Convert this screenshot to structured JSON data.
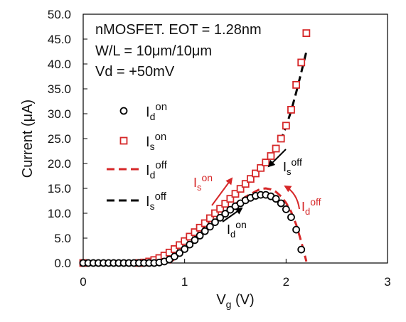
{
  "chart_data": {
    "type": "scatter",
    "xlabel": "V",
    "xlabel_sub": "g",
    "xlabel_unit": " (V)",
    "ylabel": "Current  (μA)",
    "xlim": [
      0,
      3
    ],
    "ylim": [
      0,
      50
    ],
    "xticks": [
      "0",
      "1",
      "2",
      "3"
    ],
    "yticks": [
      "0.0",
      "5.0",
      "10.0",
      "15.0",
      "20.0",
      "25.0",
      "30.0",
      "35.0",
      "40.0",
      "45.0",
      "50.0"
    ],
    "grid": false,
    "legend_position": "left",
    "annotations_text": [
      "nMOSFET. EOT = 1.28nm",
      "W/L = 10μm/10μm",
      "Vd = +50mV"
    ],
    "arrow_labels": [
      {
        "base": "I",
        "sub": "s",
        "sup": "on",
        "color": "#d62728"
      },
      {
        "base": "I",
        "sub": "s",
        "sup": "off",
        "color": "#000000"
      },
      {
        "base": "I",
        "sub": "d",
        "sup": "on",
        "color": "#000000"
      },
      {
        "base": "I",
        "sub": "d",
        "sup": "off",
        "color": "#d62728"
      }
    ],
    "series": [
      {
        "name": "Id_on",
        "legend_base": "I",
        "legend_sub": "d",
        "legend_sup": "on",
        "style": "circle",
        "color": "#000000",
        "x": [
          0.0,
          0.05,
          0.1,
          0.15,
          0.2,
          0.25,
          0.3,
          0.35,
          0.4,
          0.45,
          0.5,
          0.55,
          0.6,
          0.65,
          0.7,
          0.75,
          0.8,
          0.85,
          0.9,
          0.95,
          1.0,
          1.05,
          1.1,
          1.15,
          1.2,
          1.25,
          1.3,
          1.35,
          1.4,
          1.45,
          1.5,
          1.55,
          1.6,
          1.65,
          1.7,
          1.75,
          1.8,
          1.85,
          1.9,
          1.95,
          2.0,
          2.05,
          2.1,
          2.15
        ],
        "y": [
          0.0,
          0.0,
          0.0,
          0.0,
          0.0,
          0.0,
          0.0,
          0.0,
          0.0,
          0.0,
          0.0,
          0.0,
          0.0,
          0.0,
          0.0,
          0.1,
          0.3,
          0.7,
          1.3,
          2.0,
          2.8,
          3.7,
          4.6,
          5.5,
          6.4,
          7.3,
          8.2,
          9.1,
          9.9,
          10.7,
          11.4,
          12.0,
          12.6,
          13.1,
          13.5,
          13.7,
          13.7,
          13.4,
          12.9,
          12.0,
          10.8,
          9.2,
          6.7,
          2.7
        ]
      },
      {
        "name": "Is_on",
        "legend_base": "I",
        "legend_sub": "s",
        "legend_sup": "on",
        "style": "square",
        "color": "#d62728",
        "x": [
          0.0,
          0.55,
          0.6,
          0.65,
          0.7,
          0.75,
          0.8,
          0.85,
          0.9,
          0.95,
          1.0,
          1.05,
          1.1,
          1.15,
          1.2,
          1.25,
          1.3,
          1.35,
          1.4,
          1.45,
          1.5,
          1.55,
          1.6,
          1.65,
          1.7,
          1.75,
          1.8,
          1.85,
          1.9,
          1.95,
          2.0,
          2.05,
          2.1,
          2.15,
          2.2
        ],
        "y": [
          0.0,
          0.0,
          0.1,
          0.3,
          0.6,
          1.0,
          1.5,
          2.1,
          2.8,
          3.6,
          4.4,
          5.3,
          6.2,
          7.1,
          8.0,
          9.0,
          10.0,
          10.9,
          11.9,
          12.9,
          13.9,
          14.9,
          15.9,
          16.9,
          18.0,
          19.1,
          20.2,
          21.5,
          23.0,
          25.0,
          27.6,
          30.8,
          35.8,
          40.3,
          46.2
        ]
      },
      {
        "name": "Id_off",
        "legend_base": "I",
        "legend_sub": "d",
        "legend_sup": "off",
        "style": "dashed",
        "color": "#d62728",
        "x": [
          0.85,
          0.9,
          1.0,
          1.1,
          1.2,
          1.3,
          1.4,
          1.5,
          1.6,
          1.7,
          1.75,
          1.8,
          1.85,
          1.9,
          1.95,
          2.0,
          2.05,
          2.1,
          2.15,
          2.2
        ],
        "y": [
          0.0,
          0.8,
          2.6,
          4.5,
          6.4,
          8.3,
          10.2,
          11.9,
          13.3,
          14.4,
          14.9,
          15.0,
          14.8,
          14.3,
          13.4,
          12.1,
          10.3,
          7.7,
          4.3,
          0.3
        ]
      },
      {
        "name": "Is_off",
        "legend_base": "I",
        "legend_sub": "s",
        "legend_sup": "off",
        "style": "dashed",
        "color": "#000000",
        "x": [
          0.8,
          0.9,
          1.0,
          1.1,
          1.2,
          1.3,
          1.4,
          1.5,
          1.6,
          1.7,
          1.8,
          1.9,
          1.95,
          2.0,
          2.05,
          2.1,
          2.15,
          2.2
        ],
        "y": [
          0.0,
          1.0,
          3.0,
          5.2,
          7.5,
          9.7,
          11.8,
          13.8,
          15.8,
          17.8,
          20.0,
          22.8,
          24.8,
          27.4,
          30.6,
          34.3,
          38.3,
          42.5
        ]
      }
    ]
  }
}
